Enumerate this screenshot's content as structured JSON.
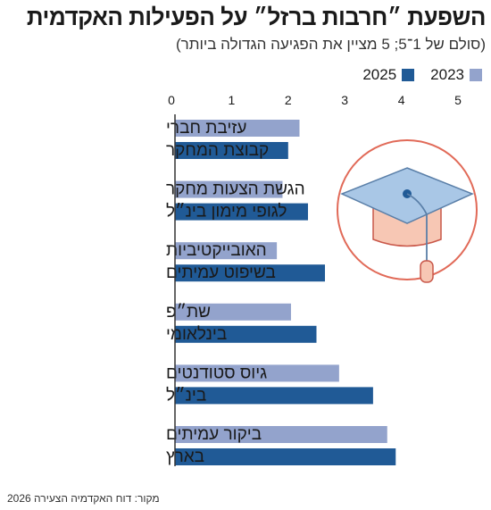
{
  "title": "השפעת ״חרבות ברזל״ על הפעילות האקדמית",
  "subtitle": "(סולם של 1־5; 5 מציין את הפגיעה הגדולה ביותר)",
  "source": "מקור: דוח האקדמיה הצעירה 2026",
  "colors": {
    "series_2023": "#93a3cc",
    "series_2025": "#205a96",
    "axis": "#333333",
    "icon_circle": "#e16a58",
    "icon_fill": "#f7c7b4"
  },
  "chart_data": {
    "type": "bar",
    "orientation": "horizontal",
    "xlim": [
      0,
      5
    ],
    "ticks": [
      "0",
      "1",
      "2",
      "3",
      "4",
      "5"
    ],
    "grid": false,
    "legend_position": "top-right",
    "categories": [
      [
        "עזיבת חברי",
        "קבוצת המחקר"
      ],
      [
        "הגשת הצעות מחקר",
        "לגופי מימון בינ״ל"
      ],
      [
        "האובייקטיביות",
        "בשיפוט עמיתים"
      ],
      [
        "שת״פ",
        "בינלאומי"
      ],
      [
        "גיוס סטודנטים",
        "בינ״ל"
      ],
      [
        "ביקור עמיתים",
        "בארץ"
      ]
    ],
    "series": [
      {
        "name": "2023",
        "values": [
          2.2,
          1.9,
          1.8,
          2.05,
          2.9,
          3.75
        ]
      },
      {
        "name": "2025",
        "values": [
          2.0,
          2.35,
          2.65,
          2.5,
          3.5,
          3.9
        ]
      }
    ]
  }
}
